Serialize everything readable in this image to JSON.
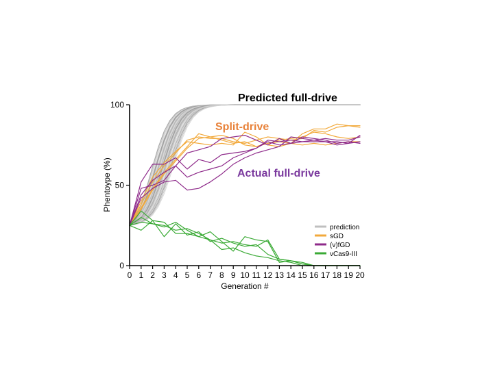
{
  "chart_data": {
    "type": "line",
    "title": "",
    "xlabel": "Generation #",
    "ylabel": "Phentoype (%)",
    "xlim": [
      0,
      20
    ],
    "ylim": [
      0,
      100
    ],
    "xticks": [
      0,
      1,
      2,
      3,
      4,
      5,
      6,
      7,
      8,
      9,
      10,
      11,
      12,
      13,
      14,
      15,
      16,
      17,
      18,
      19,
      20
    ],
    "yticks": [
      0,
      50,
      100
    ],
    "grid": false,
    "legend_position": "bottom-right",
    "legend": [
      {
        "name": "prediction",
        "color": "#bfbfbf"
      },
      {
        "name": "sGD",
        "color": "#f2a93b"
      },
      {
        "name": "(v)fGD",
        "color": "#8e2a8a"
      },
      {
        "name": "vCas9-III",
        "color": "#3aaa35"
      }
    ],
    "annotations": [
      {
        "text": "Predicted full-drive",
        "color": "#000000"
      },
      {
        "text": "Split-drive",
        "color": "#e8823a"
      },
      {
        "text": "Actual full-drive",
        "color": "#7b3a9e"
      }
    ],
    "x": [
      0,
      1,
      2,
      3,
      4,
      5,
      6,
      7,
      8,
      9,
      10,
      11,
      12,
      13,
      14,
      15,
      16,
      17,
      18,
      19,
      20
    ],
    "prediction_midpoints": [
      1.9,
      2.0,
      2.1,
      2.2,
      2.3,
      2.4,
      2.5,
      2.55,
      2.6,
      2.7,
      2.75,
      2.8,
      2.9,
      3.0,
      3.05,
      3.1,
      3.2,
      3.3,
      3.4,
      3.5,
      3.55,
      3.6,
      3.7,
      3.8,
      2.25,
      2.45,
      2.65,
      2.85,
      3.15,
      3.35
    ],
    "series": [
      {
        "group": "sGD",
        "color": "#f2a93b",
        "values": [
          25,
          38,
          52,
          62,
          70,
          78,
          80,
          79,
          79,
          77,
          76,
          78,
          80,
          79,
          78,
          79,
          84,
          83,
          86,
          87,
          87
        ]
      },
      {
        "group": "sGD",
        "color": "#f2a93b",
        "values": [
          25,
          36,
          48,
          58,
          66,
          74,
          82,
          80,
          81,
          79,
          75,
          74,
          76,
          77,
          76,
          82,
          85,
          85,
          88,
          87,
          86
        ]
      },
      {
        "group": "sGD",
        "color": "#f2a93b",
        "values": [
          25,
          40,
          55,
          64,
          71,
          77,
          76,
          75,
          76,
          75,
          83,
          80,
          75,
          74,
          76,
          75,
          76,
          75,
          76,
          77,
          77
        ]
      },
      {
        "group": "sGD",
        "color": "#f2a93b",
        "values": [
          25,
          35,
          47,
          57,
          65,
          73,
          79,
          80,
          78,
          76,
          77,
          74,
          76,
          78,
          79,
          80,
          83,
          82,
          80,
          79,
          80
        ]
      },
      {
        "group": "fGD",
        "color": "#8e2a8a",
        "values": [
          25,
          48,
          50,
          53,
          62,
          70,
          72,
          74,
          79,
          80,
          81,
          78,
          75,
          79,
          76,
          80,
          79,
          78,
          76,
          77,
          76
        ]
      },
      {
        "group": "fGD",
        "color": "#8e2a8a",
        "values": [
          25,
          52,
          63,
          63,
          67,
          60,
          66,
          64,
          69,
          70,
          71,
          73,
          77,
          75,
          76,
          77,
          78,
          77,
          75,
          76,
          81
        ]
      },
      {
        "group": "fGD",
        "color": "#8e2a8a",
        "values": [
          25,
          42,
          48,
          52,
          53,
          47,
          48,
          52,
          57,
          63,
          67,
          70,
          72,
          74,
          80,
          79,
          78,
          79,
          78,
          78,
          80
        ]
      },
      {
        "group": "fGD",
        "color": "#8e2a8a",
        "values": [
          25,
          44,
          53,
          58,
          62,
          55,
          58,
          60,
          62,
          67,
          70,
          73,
          78,
          77,
          78,
          77,
          77,
          77,
          77,
          76,
          77
        ]
      },
      {
        "group": "vCas9",
        "color": "#3aaa35",
        "values": [
          25,
          34,
          28,
          18,
          26,
          19,
          21,
          15,
          17,
          14,
          12,
          13,
          7,
          4,
          3,
          2,
          0,
          0,
          0,
          0,
          0
        ]
      },
      {
        "group": "vCas9",
        "color": "#3aaa35",
        "values": [
          25,
          22,
          28,
          27,
          20,
          20,
          18,
          16,
          14,
          15,
          13,
          12,
          16,
          4,
          3,
          1,
          0,
          0,
          0,
          0,
          0
        ]
      },
      {
        "group": "vCas9",
        "color": "#3aaa35",
        "values": [
          25,
          30,
          26,
          24,
          27,
          22,
          18,
          21,
          15,
          9,
          18,
          16,
          15,
          2,
          3,
          1,
          0,
          0,
          0,
          0,
          0
        ]
      },
      {
        "group": "vCas9",
        "color": "#3aaa35",
        "values": [
          25,
          27,
          26,
          25,
          22,
          23,
          20,
          16,
          10,
          11,
          8,
          6,
          5,
          3,
          2,
          0,
          0,
          0,
          0,
          0,
          0
        ]
      }
    ]
  }
}
